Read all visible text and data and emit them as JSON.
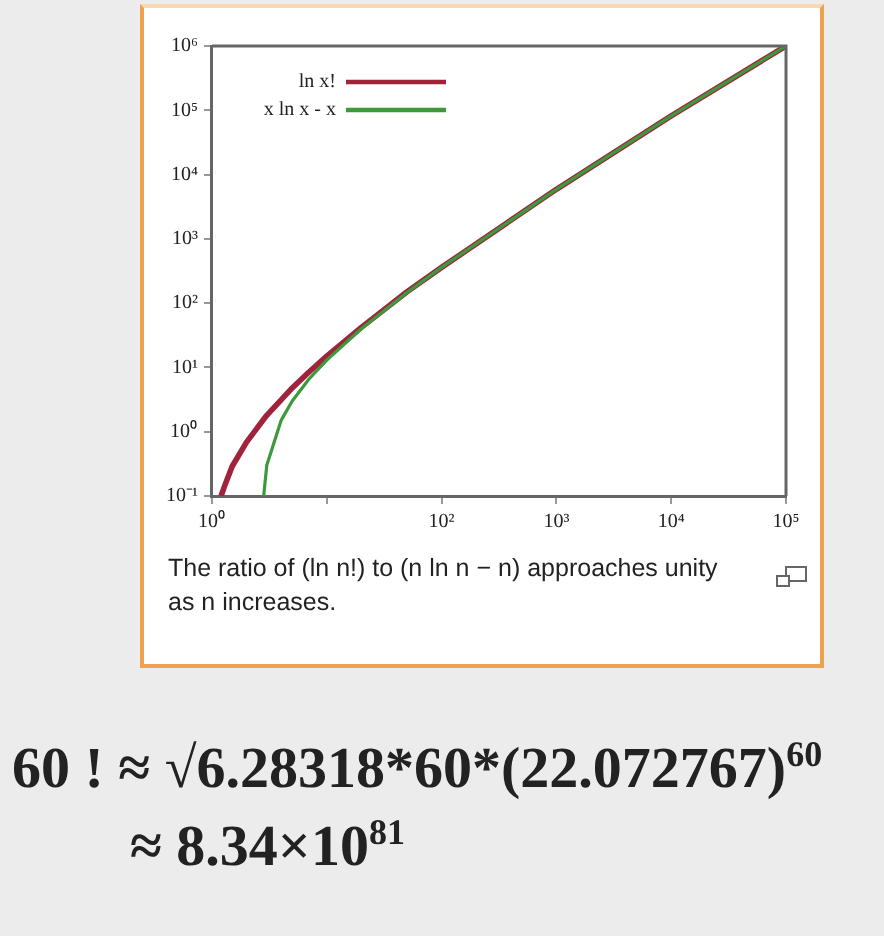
{
  "chart_data": {
    "type": "line",
    "log": "xy",
    "grid": false,
    "legend": "top left",
    "marker": "none",
    "line_style": "solid",
    "xlim": [
      1,
      100000
    ],
    "ylim": [
      0.1,
      1000000
    ],
    "xticks": [
      {
        "value": 1,
        "label": "10⁰"
      },
      {
        "value": 10,
        "label": null
      },
      {
        "value": 100,
        "label": "10²"
      },
      {
        "value": 1000,
        "label": "10³"
      },
      {
        "value": 10000,
        "label": "10⁴"
      },
      {
        "value": 100000,
        "label": "10⁵"
      }
    ],
    "yticks": [
      {
        "value": 0.1,
        "label": "10⁻¹"
      },
      {
        "value": 1,
        "label": "10⁰"
      },
      {
        "value": 10,
        "label": "10¹"
      },
      {
        "value": 100,
        "label": "10²"
      },
      {
        "value": 1000,
        "label": "10³"
      },
      {
        "value": 10000,
        "label": "10⁴"
      },
      {
        "value": 100000,
        "label": "10⁵"
      },
      {
        "value": 1000000,
        "label": "10⁶"
      }
    ],
    "series": [
      {
        "name": "ln x!",
        "color": "#a0233c",
        "x": [
          1.2,
          1.3,
          1.5,
          2,
          3,
          5,
          7,
          10,
          20,
          50,
          100,
          1000,
          10000,
          100000
        ],
        "values": [
          0.1,
          0.15,
          0.29,
          0.69,
          1.8,
          4.8,
          8.5,
          15,
          42,
          150,
          360,
          5900,
          82000,
          1000000
        ]
      },
      {
        "name": "x ln x - x",
        "color": "#3c9a3c",
        "x": [
          2.82,
          3,
          4,
          5,
          7,
          10,
          20,
          50,
          100,
          1000,
          10000,
          100000
        ],
        "values": [
          0.1,
          0.3,
          1.5,
          3,
          6.6,
          13,
          40,
          146,
          360,
          5900,
          82000,
          1000000
        ]
      }
    ],
    "annotations": [
      "The ratio of (ln n!) to (n ln n − n) approaches unity as n increases.",
      "60 !  ≈ √6.28318*60*(22.072767)$^{60}$",
      "≈ 8.34×10$^{81}$"
    ]
  }
}
